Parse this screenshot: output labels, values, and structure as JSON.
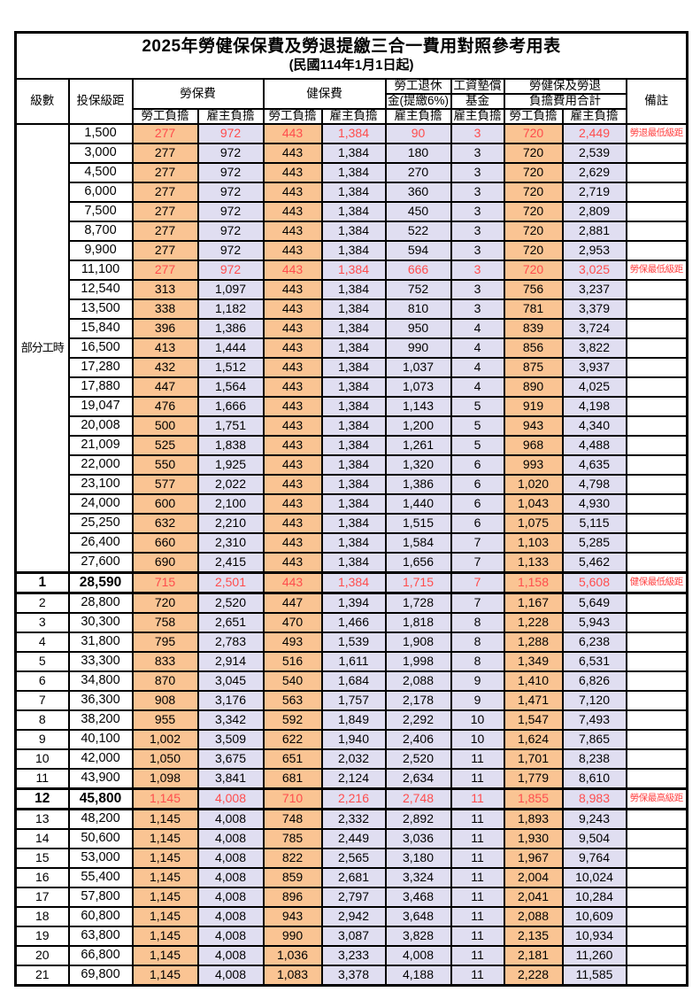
{
  "title": "2025年勞健保保費及勞退提繳三合一費用對照參考用表",
  "subtitle": "(民國114年1月1日起)",
  "header": {
    "level": "級數",
    "bracket": "投保級距",
    "labor_ins": "勞保費",
    "health_ins": "健保費",
    "pension_line1": "勞工退休",
    "pension_line2": "金(提繳6%)",
    "wage_fund_line1": "工資墊償",
    "wage_fund_line2": "基金",
    "total_line1": "勞健保及勞退",
    "total_line2": "負擔費用合計",
    "remark": "備註",
    "employee_share": "勞工負擔",
    "employer_share": "雇主負擔"
  },
  "part_time_label": "部分工時",
  "part_time_rowspan": 23,
  "colors": {
    "employee_bg": "#FAC493",
    "employer_bg": "#E0DEF1",
    "highlight_text": "#FF4D4D",
    "remark_text": "#FF4242"
  },
  "rows": [
    {
      "level": "",
      "bracket": "1,500",
      "values": [
        "277",
        "972",
        "443",
        "1,384",
        "90",
        "3",
        "720",
        "2,449"
      ],
      "remark": "勞退最低級距"
    },
    {
      "level": "",
      "bracket": "3,000",
      "values": [
        "277",
        "972",
        "443",
        "1,384",
        "180",
        "3",
        "720",
        "2,539"
      ],
      "remark": ""
    },
    {
      "level": "",
      "bracket": "4,500",
      "values": [
        "277",
        "972",
        "443",
        "1,384",
        "270",
        "3",
        "720",
        "2,629"
      ],
      "remark": ""
    },
    {
      "level": "",
      "bracket": "6,000",
      "values": [
        "277",
        "972",
        "443",
        "1,384",
        "360",
        "3",
        "720",
        "2,719"
      ],
      "remark": ""
    },
    {
      "level": "",
      "bracket": "7,500",
      "values": [
        "277",
        "972",
        "443",
        "1,384",
        "450",
        "3",
        "720",
        "2,809"
      ],
      "remark": ""
    },
    {
      "level": "",
      "bracket": "8,700",
      "values": [
        "277",
        "972",
        "443",
        "1,384",
        "522",
        "3",
        "720",
        "2,881"
      ],
      "remark": ""
    },
    {
      "level": "",
      "bracket": "9,900",
      "values": [
        "277",
        "972",
        "443",
        "1,384",
        "594",
        "3",
        "720",
        "2,953"
      ],
      "remark": ""
    },
    {
      "level": "",
      "bracket": "11,100",
      "values": [
        "277",
        "972",
        "443",
        "1,384",
        "666",
        "3",
        "720",
        "3,025"
      ],
      "remark": "勞保最低級距"
    },
    {
      "level": "",
      "bracket": "12,540",
      "values": [
        "313",
        "1,097",
        "443",
        "1,384",
        "752",
        "3",
        "756",
        "3,237"
      ],
      "remark": ""
    },
    {
      "level": "",
      "bracket": "13,500",
      "values": [
        "338",
        "1,182",
        "443",
        "1,384",
        "810",
        "3",
        "781",
        "3,379"
      ],
      "remark": ""
    },
    {
      "level": "",
      "bracket": "15,840",
      "values": [
        "396",
        "1,386",
        "443",
        "1,384",
        "950",
        "4",
        "839",
        "3,724"
      ],
      "remark": ""
    },
    {
      "level": "",
      "bracket": "16,500",
      "values": [
        "413",
        "1,444",
        "443",
        "1,384",
        "990",
        "4",
        "856",
        "3,822"
      ],
      "remark": ""
    },
    {
      "level": "",
      "bracket": "17,280",
      "values": [
        "432",
        "1,512",
        "443",
        "1,384",
        "1,037",
        "4",
        "875",
        "3,937"
      ],
      "remark": ""
    },
    {
      "level": "",
      "bracket": "17,880",
      "values": [
        "447",
        "1,564",
        "443",
        "1,384",
        "1,073",
        "4",
        "890",
        "4,025"
      ],
      "remark": ""
    },
    {
      "level": "",
      "bracket": "19,047",
      "values": [
        "476",
        "1,666",
        "443",
        "1,384",
        "1,143",
        "5",
        "919",
        "4,198"
      ],
      "remark": ""
    },
    {
      "level": "",
      "bracket": "20,008",
      "values": [
        "500",
        "1,751",
        "443",
        "1,384",
        "1,200",
        "5",
        "943",
        "4,340"
      ],
      "remark": ""
    },
    {
      "level": "",
      "bracket": "21,009",
      "values": [
        "525",
        "1,838",
        "443",
        "1,384",
        "1,261",
        "5",
        "968",
        "4,488"
      ],
      "remark": ""
    },
    {
      "level": "",
      "bracket": "22,000",
      "values": [
        "550",
        "1,925",
        "443",
        "1,384",
        "1,320",
        "6",
        "993",
        "4,635"
      ],
      "remark": ""
    },
    {
      "level": "",
      "bracket": "23,100",
      "values": [
        "577",
        "2,022",
        "443",
        "1,384",
        "1,386",
        "6",
        "1,020",
        "4,798"
      ],
      "remark": ""
    },
    {
      "level": "",
      "bracket": "24,000",
      "values": [
        "600",
        "2,100",
        "443",
        "1,384",
        "1,440",
        "6",
        "1,043",
        "4,930"
      ],
      "remark": ""
    },
    {
      "level": "",
      "bracket": "25,250",
      "values": [
        "632",
        "2,210",
        "443",
        "1,384",
        "1,515",
        "6",
        "1,075",
        "5,115"
      ],
      "remark": ""
    },
    {
      "level": "",
      "bracket": "26,400",
      "values": [
        "660",
        "2,310",
        "443",
        "1,384",
        "1,584",
        "7",
        "1,103",
        "5,285"
      ],
      "remark": ""
    },
    {
      "level": "",
      "bracket": "27,600",
      "values": [
        "690",
        "2,415",
        "443",
        "1,384",
        "1,656",
        "7",
        "1,133",
        "5,462"
      ],
      "remark": ""
    },
    {
      "level": "1",
      "bracket": "28,590",
      "values": [
        "715",
        "2,501",
        "443",
        "1,384",
        "1,715",
        "7",
        "1,158",
        "5,608"
      ],
      "remark": "健保最低級距"
    },
    {
      "level": "2",
      "bracket": "28,800",
      "values": [
        "720",
        "2,520",
        "447",
        "1,394",
        "1,728",
        "7",
        "1,167",
        "5,649"
      ],
      "remark": ""
    },
    {
      "level": "3",
      "bracket": "30,300",
      "values": [
        "758",
        "2,651",
        "470",
        "1,466",
        "1,818",
        "8",
        "1,228",
        "5,943"
      ],
      "remark": ""
    },
    {
      "level": "4",
      "bracket": "31,800",
      "values": [
        "795",
        "2,783",
        "493",
        "1,539",
        "1,908",
        "8",
        "1,288",
        "6,238"
      ],
      "remark": ""
    },
    {
      "level": "5",
      "bracket": "33,300",
      "values": [
        "833",
        "2,914",
        "516",
        "1,611",
        "1,998",
        "8",
        "1,349",
        "6,531"
      ],
      "remark": ""
    },
    {
      "level": "6",
      "bracket": "34,800",
      "values": [
        "870",
        "3,045",
        "540",
        "1,684",
        "2,088",
        "9",
        "1,410",
        "6,826"
      ],
      "remark": ""
    },
    {
      "level": "7",
      "bracket": "36,300",
      "values": [
        "908",
        "3,176",
        "563",
        "1,757",
        "2,178",
        "9",
        "1,471",
        "7,120"
      ],
      "remark": ""
    },
    {
      "level": "8",
      "bracket": "38,200",
      "values": [
        "955",
        "3,342",
        "592",
        "1,849",
        "2,292",
        "10",
        "1,547",
        "7,493"
      ],
      "remark": ""
    },
    {
      "level": "9",
      "bracket": "40,100",
      "values": [
        "1,002",
        "3,509",
        "622",
        "1,940",
        "2,406",
        "10",
        "1,624",
        "7,865"
      ],
      "remark": ""
    },
    {
      "level": "10",
      "bracket": "42,000",
      "values": [
        "1,050",
        "3,675",
        "651",
        "2,032",
        "2,520",
        "11",
        "1,701",
        "8,238"
      ],
      "remark": ""
    },
    {
      "level": "11",
      "bracket": "43,900",
      "values": [
        "1,098",
        "3,841",
        "681",
        "2,124",
        "2,634",
        "11",
        "1,779",
        "8,610"
      ],
      "remark": ""
    },
    {
      "level": "12",
      "bracket": "45,800",
      "values": [
        "1,145",
        "4,008",
        "710",
        "2,216",
        "2,748",
        "11",
        "1,855",
        "8,983"
      ],
      "remark": "勞保最高級距"
    },
    {
      "level": "13",
      "bracket": "48,200",
      "values": [
        "1,145",
        "4,008",
        "748",
        "2,332",
        "2,892",
        "11",
        "1,893",
        "9,243"
      ],
      "remark": ""
    },
    {
      "level": "14",
      "bracket": "50,600",
      "values": [
        "1,145",
        "4,008",
        "785",
        "2,449",
        "3,036",
        "11",
        "1,930",
        "9,504"
      ],
      "remark": ""
    },
    {
      "level": "15",
      "bracket": "53,000",
      "values": [
        "1,145",
        "4,008",
        "822",
        "2,565",
        "3,180",
        "11",
        "1,967",
        "9,764"
      ],
      "remark": ""
    },
    {
      "level": "16",
      "bracket": "55,400",
      "values": [
        "1,145",
        "4,008",
        "859",
        "2,681",
        "3,324",
        "11",
        "2,004",
        "10,024"
      ],
      "remark": ""
    },
    {
      "level": "17",
      "bracket": "57,800",
      "values": [
        "1,145",
        "4,008",
        "896",
        "2,797",
        "3,468",
        "11",
        "2,041",
        "10,284"
      ],
      "remark": ""
    },
    {
      "level": "18",
      "bracket": "60,800",
      "values": [
        "1,145",
        "4,008",
        "943",
        "2,942",
        "3,648",
        "11",
        "2,088",
        "10,609"
      ],
      "remark": ""
    },
    {
      "level": "19",
      "bracket": "63,800",
      "values": [
        "1,145",
        "4,008",
        "990",
        "3,087",
        "3,828",
        "11",
        "2,135",
        "10,934"
      ],
      "remark": ""
    },
    {
      "level": "20",
      "bracket": "66,800",
      "values": [
        "1,145",
        "4,008",
        "1,036",
        "3,233",
        "4,008",
        "11",
        "2,181",
        "11,260"
      ],
      "remark": ""
    },
    {
      "level": "21",
      "bracket": "69,800",
      "values": [
        "1,145",
        "4,008",
        "1,083",
        "3,378",
        "4,188",
        "11",
        "2,228",
        "11,585"
      ],
      "remark": ""
    }
  ]
}
